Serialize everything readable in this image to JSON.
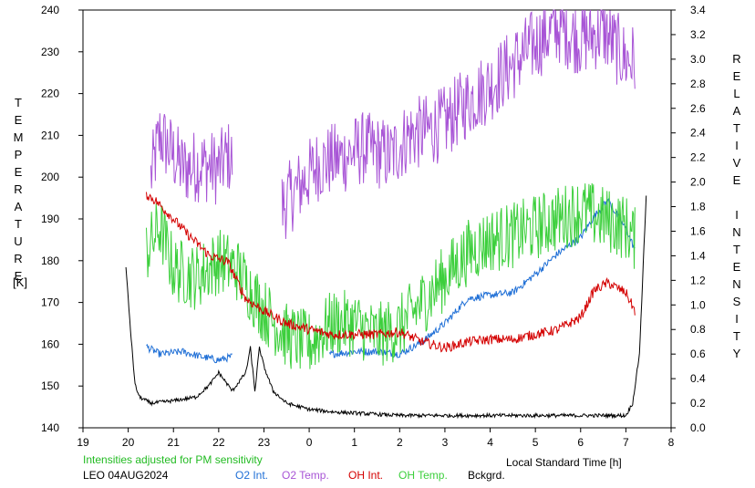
{
  "chart_data": {
    "type": "line",
    "station": "LEO 04AUG2024",
    "note": "Intensities adjusted for PM sensitivity",
    "xlabel": "Local Standard Time [h]",
    "ylabel_left": "TEMPERATURE",
    "ylabel_left_unit": "[K]",
    "ylabel_right": "RELATIVE INTENSITY",
    "x_ticks": [
      "19",
      "20",
      "21",
      "22",
      "23",
      "0",
      "1",
      "2",
      "3",
      "4",
      "5",
      "6",
      "7",
      "8"
    ],
    "left_ticks": [
      "140",
      "150",
      "160",
      "170",
      "180",
      "190",
      "200",
      "210",
      "220",
      "230",
      "240"
    ],
    "right_ticks": [
      "0.0",
      "0.2",
      "0.4",
      "0.6",
      "0.8",
      "1.0",
      "1.2",
      "1.4",
      "1.6",
      "1.8",
      "2.0",
      "2.2",
      "2.4",
      "2.6",
      "2.8",
      "3.0",
      "3.2",
      "3.4"
    ],
    "xlim": [
      19,
      32
    ],
    "ylim_left": [
      140,
      240
    ],
    "ylim_right": [
      0,
      3.4
    ],
    "legend": [
      {
        "name": "O2 Int.",
        "color": "#1f6fd6"
      },
      {
        "name": "O2 Temp.",
        "color": "#a855d6"
      },
      {
        "name": "OH Int.",
        "color": "#d40000"
      },
      {
        "name": "OH Temp.",
        "color": "#3ccf3c"
      },
      {
        "name": "Bckgrd.",
        "color": "#000000"
      }
    ],
    "series": [
      {
        "name": "O2 Temp.",
        "axis": "left",
        "color": "#a855d6",
        "x": [
          20.5,
          20.7,
          21.2,
          21.6,
          22.0,
          22.2,
          23.4,
          23.8,
          24.2,
          24.8,
          25.2,
          25.8,
          26.2,
          26.6,
          27.0,
          27.5,
          28.0,
          28.5,
          29.0,
          29.5,
          30.0,
          30.5,
          31.0,
          31.2
        ],
        "y": [
          200,
          210,
          202,
          203,
          202,
          205,
          193,
          198,
          203,
          205,
          207,
          205,
          210,
          211,
          213,
          218,
          222,
          227,
          232,
          236,
          233,
          235,
          228,
          228
        ]
      },
      {
        "name": "O2 Int.",
        "axis": "right",
        "color": "#1f6fd6",
        "x": [
          20.4,
          20.7,
          21.2,
          21.6,
          22.0,
          22.3,
          24.5,
          25.0,
          25.5,
          26.0,
          26.5,
          27.0,
          27.5,
          28.0,
          28.5,
          29.0,
          29.5,
          30.0,
          30.3,
          30.6,
          31.0,
          31.2
        ],
        "y": [
          0.66,
          0.6,
          0.62,
          0.58,
          0.55,
          0.58,
          0.6,
          0.62,
          0.62,
          0.6,
          0.7,
          0.85,
          1.05,
          1.08,
          1.1,
          1.25,
          1.42,
          1.55,
          1.72,
          1.85,
          1.62,
          1.45
        ]
      },
      {
        "name": "OH Temp.",
        "axis": "left",
        "color": "#3ccf3c",
        "x": [
          20.4,
          20.7,
          21.0,
          21.5,
          22.0,
          22.4,
          23.0,
          23.5,
          24.0,
          24.5,
          25.0,
          25.5,
          26.0,
          26.5,
          27.0,
          27.5,
          28.0,
          28.5,
          29.0,
          29.5,
          30.0,
          30.5,
          31.0,
          31.2
        ],
        "y": [
          182,
          188,
          178,
          176,
          180,
          178,
          168,
          162,
          160,
          165,
          165,
          162,
          164,
          170,
          176,
          182,
          185,
          186,
          188,
          190,
          192,
          190,
          188,
          185
        ]
      },
      {
        "name": "OH Int.",
        "axis": "right",
        "color": "#d40000",
        "x": [
          20.4,
          20.6,
          21.0,
          21.3,
          21.8,
          22.2,
          22.6,
          23.0,
          23.5,
          24.0,
          24.5,
          25.0,
          25.5,
          26.0,
          26.5,
          27.0,
          27.5,
          28.0,
          28.5,
          29.0,
          29.5,
          30.0,
          30.3,
          30.6,
          31.0,
          31.2
        ],
        "y": [
          1.9,
          1.85,
          1.7,
          1.58,
          1.4,
          1.35,
          1.05,
          0.95,
          0.85,
          0.8,
          0.76,
          0.76,
          0.76,
          0.78,
          0.7,
          0.65,
          0.7,
          0.72,
          0.72,
          0.76,
          0.8,
          0.9,
          1.12,
          1.18,
          1.1,
          0.95
        ]
      },
      {
        "name": "Bckgrd.",
        "axis": "right",
        "color": "#000000",
        "x": [
          19.95,
          20.05,
          20.15,
          20.25,
          20.5,
          21.0,
          21.5,
          21.8,
          22.0,
          22.3,
          22.6,
          22.7,
          22.8,
          22.9,
          23.0,
          23.2,
          23.5,
          24.0,
          24.5,
          25.0,
          26.0,
          27.0,
          28.0,
          29.0,
          30.0,
          31.0,
          31.15,
          31.3,
          31.45
        ],
        "y": [
          1.3,
          0.8,
          0.35,
          0.25,
          0.2,
          0.22,
          0.25,
          0.35,
          0.45,
          0.3,
          0.45,
          0.65,
          0.3,
          0.65,
          0.5,
          0.3,
          0.2,
          0.15,
          0.13,
          0.12,
          0.1,
          0.1,
          0.1,
          0.1,
          0.1,
          0.1,
          0.2,
          0.6,
          1.9
        ]
      }
    ]
  }
}
